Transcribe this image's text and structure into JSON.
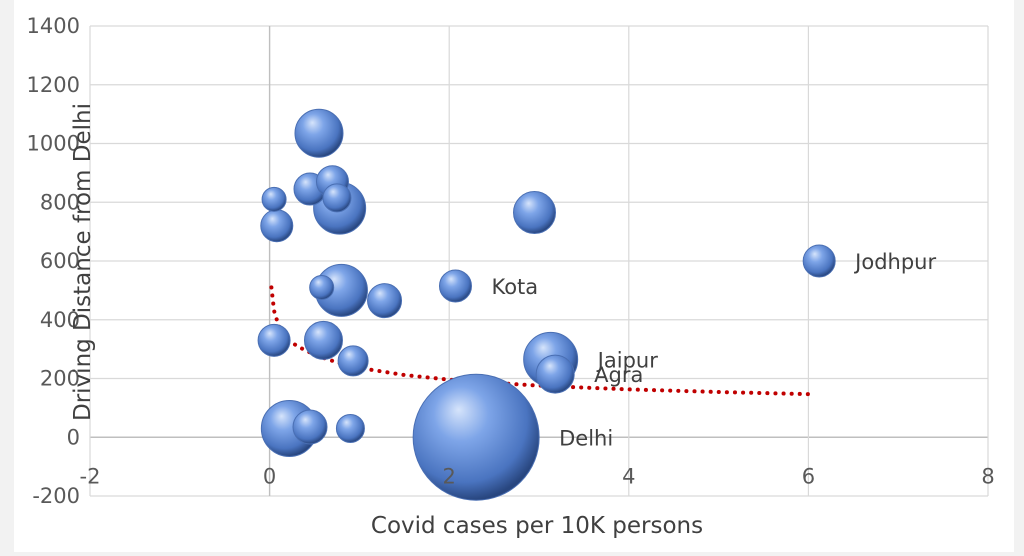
{
  "chart_data": {
    "type": "scatter",
    "subtype": "bubble",
    "title": "",
    "xlabel": "Covid cases per 10K persons",
    "ylabel": "Driving Distance from  Delhi",
    "xlim": [
      -2,
      8
    ],
    "ylim": [
      -200,
      1400
    ],
    "xticks": [
      -2,
      0,
      2,
      4,
      6,
      8
    ],
    "yticks": [
      -200,
      0,
      200,
      400,
      600,
      800,
      1000,
      1200,
      1400
    ],
    "grid": true,
    "legend": "none",
    "colors": {
      "bubble": "#5b87d6",
      "bubble_dark": "#28467f",
      "trendline": "#c00000",
      "grid": "#d9d9d9"
    },
    "bubbles": [
      {
        "x": 0.55,
        "y": 1035,
        "size": 24,
        "label": ""
      },
      {
        "x": 0.05,
        "y": 810,
        "size": 12,
        "label": ""
      },
      {
        "x": 0.08,
        "y": 720,
        "size": 16,
        "label": ""
      },
      {
        "x": 0.45,
        "y": 845,
        "size": 16,
        "label": ""
      },
      {
        "x": 0.7,
        "y": 870,
        "size": 16,
        "label": ""
      },
      {
        "x": 0.75,
        "y": 815,
        "size": 14,
        "label": ""
      },
      {
        "x": 0.78,
        "y": 780,
        "size": 26,
        "label": ""
      },
      {
        "x": 2.95,
        "y": 765,
        "size": 21,
        "label": ""
      },
      {
        "x": 6.12,
        "y": 600,
        "size": 16,
        "label": "Jodhpur"
      },
      {
        "x": 2.07,
        "y": 515,
        "size": 16,
        "label": "Kota"
      },
      {
        "x": 0.58,
        "y": 510,
        "size": 12,
        "label": ""
      },
      {
        "x": 0.8,
        "y": 500,
        "size": 26,
        "label": ""
      },
      {
        "x": 1.28,
        "y": 465,
        "size": 17,
        "label": ""
      },
      {
        "x": 0.05,
        "y": 330,
        "size": 16,
        "label": ""
      },
      {
        "x": 0.6,
        "y": 330,
        "size": 19,
        "label": ""
      },
      {
        "x": 0.93,
        "y": 260,
        "size": 15,
        "label": ""
      },
      {
        "x": 3.13,
        "y": 265,
        "size": 27,
        "label": "Jaipur"
      },
      {
        "x": 3.18,
        "y": 215,
        "size": 19,
        "label": "Agra"
      },
      {
        "x": 0.22,
        "y": 30,
        "size": 28,
        "label": ""
      },
      {
        "x": 0.45,
        "y": 35,
        "size": 17,
        "label": ""
      },
      {
        "x": 0.9,
        "y": 30,
        "size": 14,
        "label": ""
      },
      {
        "x": 2.3,
        "y": 0,
        "size": 63,
        "label": "Delhi"
      }
    ],
    "trendline": {
      "style": "dotted",
      "x": [
        0.02,
        0.05,
        0.1,
        0.2,
        0.4,
        0.6,
        0.8,
        1,
        1.5,
        2,
        2.5,
        3,
        3.5,
        4,
        5,
        6
      ],
      "y": [
        510,
        430,
        380,
        330,
        295,
        270,
        250,
        236,
        212,
        196,
        185,
        176,
        169,
        163,
        154,
        147
      ]
    }
  }
}
